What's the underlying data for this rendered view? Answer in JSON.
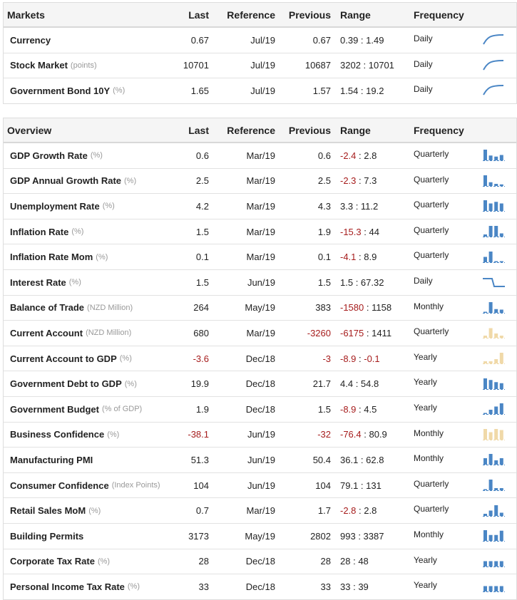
{
  "markets": {
    "headers": {
      "name": "Markets",
      "last": "Last",
      "reference": "Reference",
      "previous": "Previous",
      "range": "Range",
      "frequency": "Frequency"
    },
    "rows": [
      {
        "name": "Currency",
        "unit": "",
        "last": "0.67",
        "reference": "Jul/19",
        "previous": "0.67",
        "range_low": "0.39",
        "range_high": "1.49",
        "frequency": "Daily",
        "spark": "curve-up"
      },
      {
        "name": "Stock Market",
        "unit": "(points)",
        "last": "10701",
        "reference": "Jul/19",
        "previous": "10687",
        "range_low": "3202",
        "range_high": "10701",
        "frequency": "Daily",
        "spark": "curve-up"
      },
      {
        "name": "Government Bond 10Y",
        "unit": "(%)",
        "last": "1.65",
        "reference": "Jul/19",
        "previous": "1.57",
        "range_low": "1.54",
        "range_high": "19.2",
        "frequency": "Daily",
        "spark": "curve-up"
      }
    ]
  },
  "overview": {
    "headers": {
      "name": "Overview",
      "last": "Last",
      "reference": "Reference",
      "previous": "Previous",
      "range": "Range",
      "frequency": "Frequency"
    },
    "rows": [
      {
        "name": "GDP Growth Rate",
        "unit": "(%)",
        "last": "0.6",
        "reference": "Mar/19",
        "previous": "0.6",
        "range_low": "-2.4",
        "range_high": "2.8",
        "frequency": "Quarterly",
        "spark": "bars-blue",
        "bar_levels": [
          1,
          0.45,
          0.35,
          0.5
        ]
      },
      {
        "name": "GDP Annual Growth Rate",
        "unit": "(%)",
        "last": "2.5",
        "reference": "Mar/19",
        "previous": "2.5",
        "range_low": "-2.3",
        "range_high": "7.3",
        "frequency": "Quarterly",
        "spark": "bars-blue",
        "bar_levels": [
          1,
          0.35,
          0.2,
          0.15
        ]
      },
      {
        "name": "Unemployment Rate",
        "unit": "(%)",
        "last": "4.2",
        "reference": "Mar/19",
        "previous": "4.3",
        "range_low": "3.3",
        "range_high": "11.2",
        "frequency": "Quarterly",
        "spark": "bars-blue",
        "bar_levels": [
          1,
          0.7,
          0.85,
          0.7
        ]
      },
      {
        "name": "Inflation Rate",
        "unit": "(%)",
        "last": "1.5",
        "reference": "Mar/19",
        "previous": "1.9",
        "range_low": "-15.3",
        "range_high": "44",
        "frequency": "Quarterly",
        "spark": "bars-blue",
        "bar_levels": [
          0.2,
          1,
          1,
          0.3
        ]
      },
      {
        "name": "Inflation Rate Mom",
        "unit": "(%)",
        "last": "0.1",
        "reference": "Mar/19",
        "previous": "0.1",
        "range_low": "-4.1",
        "range_high": "8.9",
        "frequency": "Quarterly",
        "spark": "bars-blue",
        "bar_levels": [
          0.5,
          1,
          0.1,
          0.1
        ]
      },
      {
        "name": "Interest Rate",
        "unit": "(%)",
        "last": "1.5",
        "reference": "Jun/19",
        "previous": "1.5",
        "range_low": "1.5",
        "range_high": "67.32",
        "frequency": "Daily",
        "spark": "step-down"
      },
      {
        "name": "Balance of Trade",
        "unit": "(NZD Million)",
        "last": "264",
        "reference": "May/19",
        "previous": "383",
        "range_low": "-1580",
        "range_high": "1158",
        "frequency": "Monthly",
        "spark": "bars-blue",
        "bar_levels": [
          0.1,
          1,
          0.35,
          0.3
        ]
      },
      {
        "name": "Current Account",
        "unit": "(NZD Million)",
        "last": "680",
        "reference": "Mar/19",
        "previous": "-3260",
        "range_low": "-6175",
        "range_high": "1411",
        "frequency": "Quarterly",
        "spark": "bars-tan",
        "bar_levels": [
          0.2,
          0.9,
          0.4,
          0.2
        ]
      },
      {
        "name": "Current Account to GDP",
        "unit": "(%)",
        "last": "-3.6",
        "reference": "Dec/18",
        "previous": "-3",
        "range_low": "-8.9",
        "range_high": "-0.1",
        "frequency": "Yearly",
        "spark": "bars-tan",
        "bar_levels": [
          0.2,
          0.2,
          0.4,
          1
        ]
      },
      {
        "name": "Government Debt to GDP",
        "unit": "(%)",
        "last": "19.9",
        "reference": "Dec/18",
        "previous": "21.7",
        "range_low": "4.4",
        "range_high": "54.8",
        "frequency": "Yearly",
        "spark": "bars-blue",
        "bar_levels": [
          1,
          0.85,
          0.65,
          0.55
        ]
      },
      {
        "name": "Government Budget",
        "unit": "(% of GDP)",
        "last": "1.9",
        "reference": "Dec/18",
        "previous": "1.5",
        "range_low": "-8.9",
        "range_high": "4.5",
        "frequency": "Yearly",
        "spark": "bars-blue",
        "bar_levels": [
          0.1,
          0.4,
          0.7,
          1
        ]
      },
      {
        "name": "Business Confidence",
        "unit": "(%)",
        "last": "-38.1",
        "reference": "Jun/19",
        "previous": "-32",
        "range_low": "-76.4",
        "range_high": "80.9",
        "frequency": "Monthly",
        "spark": "bars-tan",
        "bar_levels": [
          1,
          0.7,
          1,
          0.9
        ]
      },
      {
        "name": "Manufacturing PMI",
        "unit": "",
        "last": "51.3",
        "reference": "Jun/19",
        "previous": "50.4",
        "range_low": "36.1",
        "range_high": "62.8",
        "frequency": "Monthly",
        "spark": "bars-blue",
        "bar_levels": [
          0.6,
          1,
          0.4,
          0.6
        ]
      },
      {
        "name": "Consumer Confidence",
        "unit": "(Index Points)",
        "last": "104",
        "reference": "Jun/19",
        "previous": "104",
        "range_low": "79.1",
        "range_high": "131",
        "frequency": "Quarterly",
        "spark": "bars-blue",
        "bar_levels": [
          0.1,
          1,
          0.2,
          0.2
        ]
      },
      {
        "name": "Retail Sales MoM",
        "unit": "(%)",
        "last": "0.7",
        "reference": "Mar/19",
        "previous": "1.7",
        "range_low": "-2.8",
        "range_high": "2.8",
        "frequency": "Quarterly",
        "spark": "bars-blue",
        "bar_levels": [
          0.2,
          0.5,
          1,
          0.3
        ]
      },
      {
        "name": "Building Permits",
        "unit": "",
        "last": "3173",
        "reference": "May/19",
        "previous": "2802",
        "range_low": "993",
        "range_high": "3387",
        "frequency": "Monthly",
        "spark": "bars-blue",
        "bar_levels": [
          1,
          0.55,
          0.55,
          0.95
        ]
      },
      {
        "name": "Corporate Tax Rate",
        "unit": "(%)",
        "last": "28",
        "reference": "Dec/18",
        "previous": "28",
        "range_low": "28",
        "range_high": "48",
        "frequency": "Yearly",
        "spark": "bars-blue",
        "bar_levels": [
          0.5,
          0.5,
          0.5,
          0.5
        ]
      },
      {
        "name": "Personal Income Tax Rate",
        "unit": "(%)",
        "last": "33",
        "reference": "Dec/18",
        "previous": "33",
        "range_low": "33",
        "range_high": "39",
        "frequency": "Yearly",
        "spark": "bars-blue",
        "bar_levels": [
          0.5,
          0.5,
          0.5,
          0.5
        ]
      }
    ]
  },
  "colors": {
    "spark_blue": "#4a86c5",
    "spark_tan": "#f0d9a8",
    "negative": "#a61c1c"
  }
}
